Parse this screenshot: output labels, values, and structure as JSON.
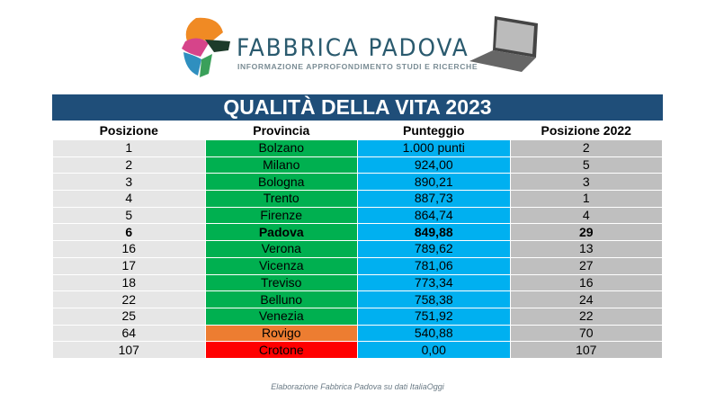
{
  "header": {
    "brand": "FABBRICA PADOVA",
    "tagline": "INFORMAZIONE APPROFONDIMENTO STUDI E RICERCHE"
  },
  "title": "QUALITÀ DELLA VITA 2023",
  "columns": [
    "Posizione",
    "Provincia",
    "Punteggio",
    "Posizione 2022"
  ],
  "colors": {
    "title": "#1f4e79",
    "green": "#00b050",
    "orange": "#ed7d31",
    "red": "#ff0000",
    "blue": "#00b0f0"
  },
  "rows": [
    {
      "pos": "1",
      "prov": "Bolzano",
      "score": "1.000 punti",
      "pos2022": "2"
    },
    {
      "pos": "2",
      "prov": "Milano",
      "score": "924,00",
      "pos2022": "5"
    },
    {
      "pos": "3",
      "prov": "Bologna",
      "score": "890,21",
      "pos2022": "3"
    },
    {
      "pos": "4",
      "prov": "Trento",
      "score": "887,73",
      "pos2022": "1"
    },
    {
      "pos": "5",
      "prov": "Firenze",
      "score": "864,74",
      "pos2022": "4"
    },
    {
      "pos": "6",
      "prov": "Padova",
      "score": "849,88",
      "pos2022": "29",
      "bold": true
    },
    {
      "pos": "16",
      "prov": "Verona",
      "score": "789,62",
      "pos2022": "13"
    },
    {
      "pos": "17",
      "prov": "Vicenza",
      "score": "781,06",
      "pos2022": "27"
    },
    {
      "pos": "18",
      "prov": "Treviso",
      "score": "773,34",
      "pos2022": "16"
    },
    {
      "pos": "22",
      "prov": "Belluno",
      "score": "758,38",
      "pos2022": "24"
    },
    {
      "pos": "25",
      "prov": "Venezia",
      "score": "751,92",
      "pos2022": "22"
    },
    {
      "pos": "64",
      "prov": "Rovigo",
      "score": "540,88",
      "pos2022": "70",
      "color": "#ed7d31"
    },
    {
      "pos": "107",
      "prov": "Crotone",
      "score": "0,00",
      "pos2022": "107",
      "color": "#ff0000"
    }
  ],
  "footer": "Elaborazione Fabbrica Padova su dati ItaliaOggi"
}
